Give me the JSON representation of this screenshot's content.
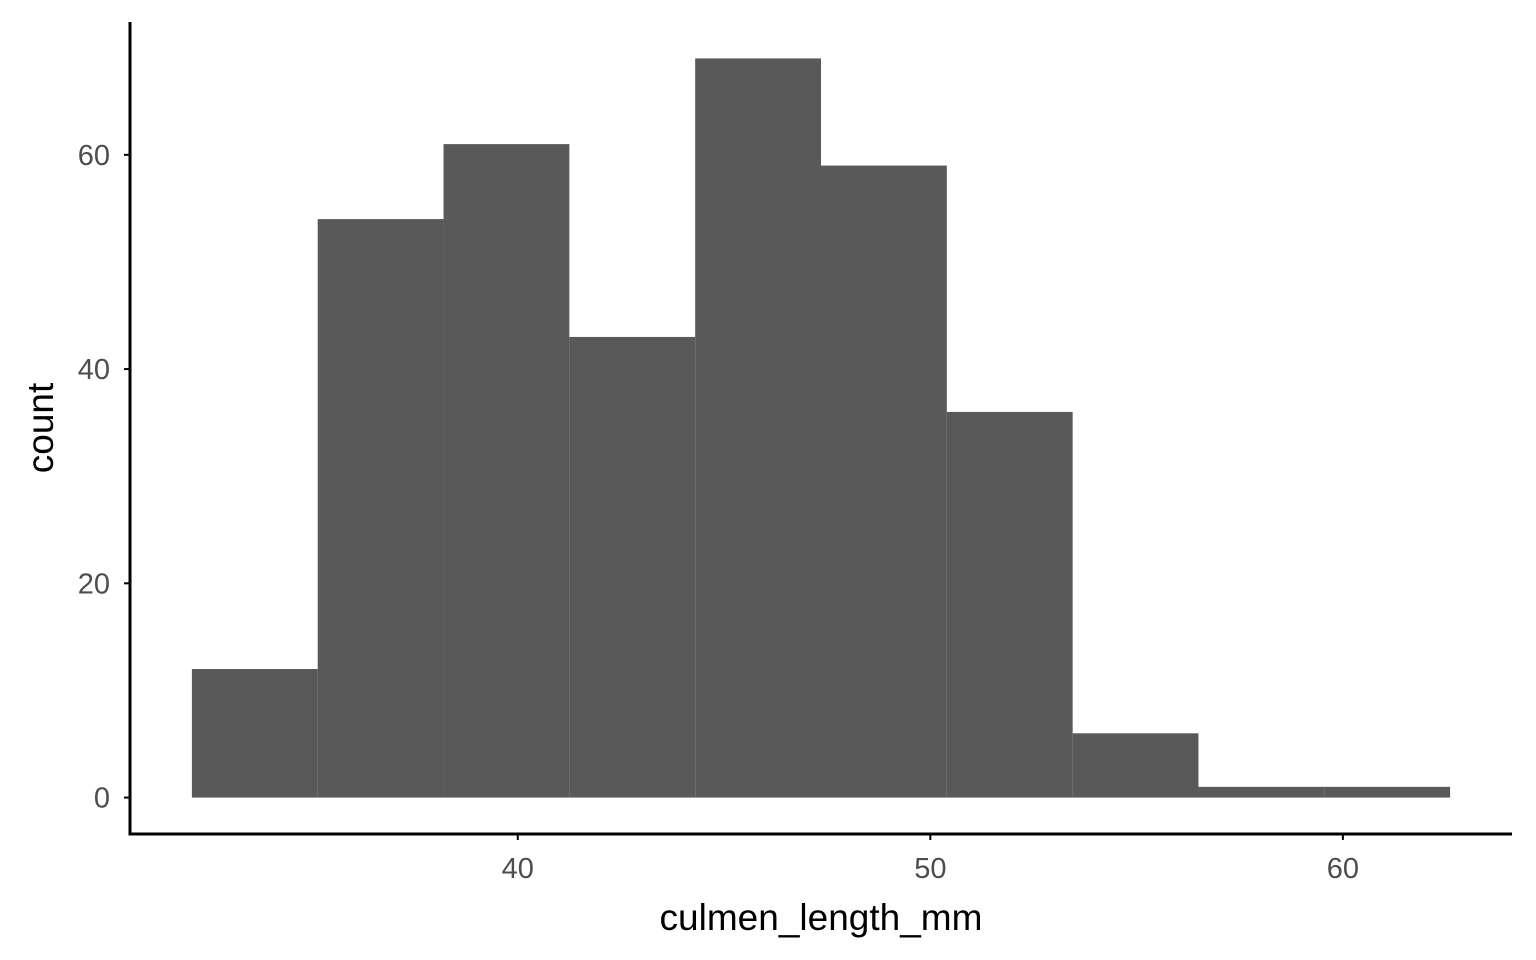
{
  "chart_data": {
    "type": "bar",
    "subtype": "histogram",
    "xlabel": "culmen_length_mm",
    "ylabel": "count",
    "bins": [
      {
        "x0": 32.1,
        "x1": 35.15,
        "count": 12
      },
      {
        "x0": 35.15,
        "x1": 38.2,
        "count": 54
      },
      {
        "x0": 38.2,
        "x1": 41.25,
        "count": 61
      },
      {
        "x0": 41.25,
        "x1": 44.3,
        "count": 43
      },
      {
        "x0": 44.3,
        "x1": 47.35,
        "count": 69
      },
      {
        "x0": 47.35,
        "x1": 50.4,
        "count": 59
      },
      {
        "x0": 50.4,
        "x1": 53.45,
        "count": 36
      },
      {
        "x0": 53.45,
        "x1": 56.5,
        "count": 6
      },
      {
        "x0": 56.5,
        "x1": 59.55,
        "count": 1
      },
      {
        "x0": 59.55,
        "x1": 62.6,
        "count": 1
      }
    ],
    "xticks": [
      40,
      50,
      60
    ],
    "yticks": [
      0,
      20,
      40,
      60
    ],
    "xlim": [
      30.6,
      64.1
    ],
    "ylim": [
      -3.4,
      72.4
    ],
    "grid": false,
    "bar_color": "#595959",
    "axis_color": "#000000",
    "tick_label_color": "#4d4d4d"
  }
}
